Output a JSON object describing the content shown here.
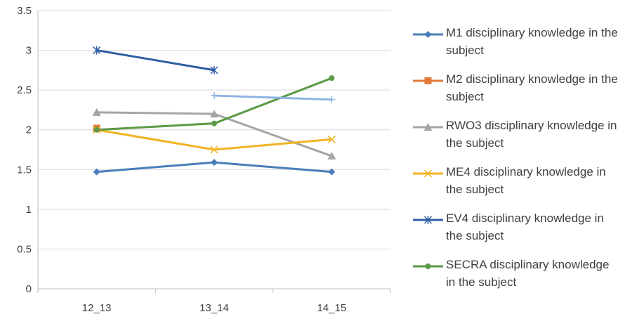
{
  "chart_data": {
    "type": "line",
    "categories": [
      "12_13",
      "13_14",
      "14_15"
    ],
    "ylim": [
      0,
      3.5
    ],
    "yticks": [
      "0",
      "0.5",
      "1",
      "1.5",
      "2",
      "2.5",
      "3",
      "3.5"
    ],
    "grid": true,
    "legend_position": "right",
    "series": [
      {
        "name": "M1 disciplinary knowledge in the subject",
        "color": "#4a7ebb",
        "marker": "diamond",
        "values": [
          1.47,
          1.59,
          1.47
        ]
      },
      {
        "name": "M2 disciplinary knowledge in the subject",
        "color": "#e07b39",
        "marker": "square",
        "values": [
          2.02,
          null,
          null
        ]
      },
      {
        "name": "RWO3 disciplinary knowledge in the subject",
        "color": "#a5a5a5",
        "marker": "triangle",
        "values": [
          2.22,
          2.2,
          1.67
        ]
      },
      {
        "name": "ME4 disciplinary knowledge in the subject",
        "color": "#f0b323",
        "marker": "x",
        "values": [
          2.0,
          1.75,
          1.88
        ]
      },
      {
        "name": "EV4 disciplinary knowledge in the subject",
        "color": "#2e5fa3",
        "marker": "asterisk",
        "values": [
          3.0,
          2.75,
          null
        ]
      },
      {
        "name": "SECRA disciplinary knowledge in the subject",
        "color": "#5b9a45",
        "marker": "circle",
        "values": [
          2.0,
          2.08,
          2.65
        ]
      },
      {
        "color": "#8eb4e3",
        "marker": "plus",
        "values": [
          null,
          2.43,
          2.38
        ],
        "in_legend": false
      }
    ]
  }
}
